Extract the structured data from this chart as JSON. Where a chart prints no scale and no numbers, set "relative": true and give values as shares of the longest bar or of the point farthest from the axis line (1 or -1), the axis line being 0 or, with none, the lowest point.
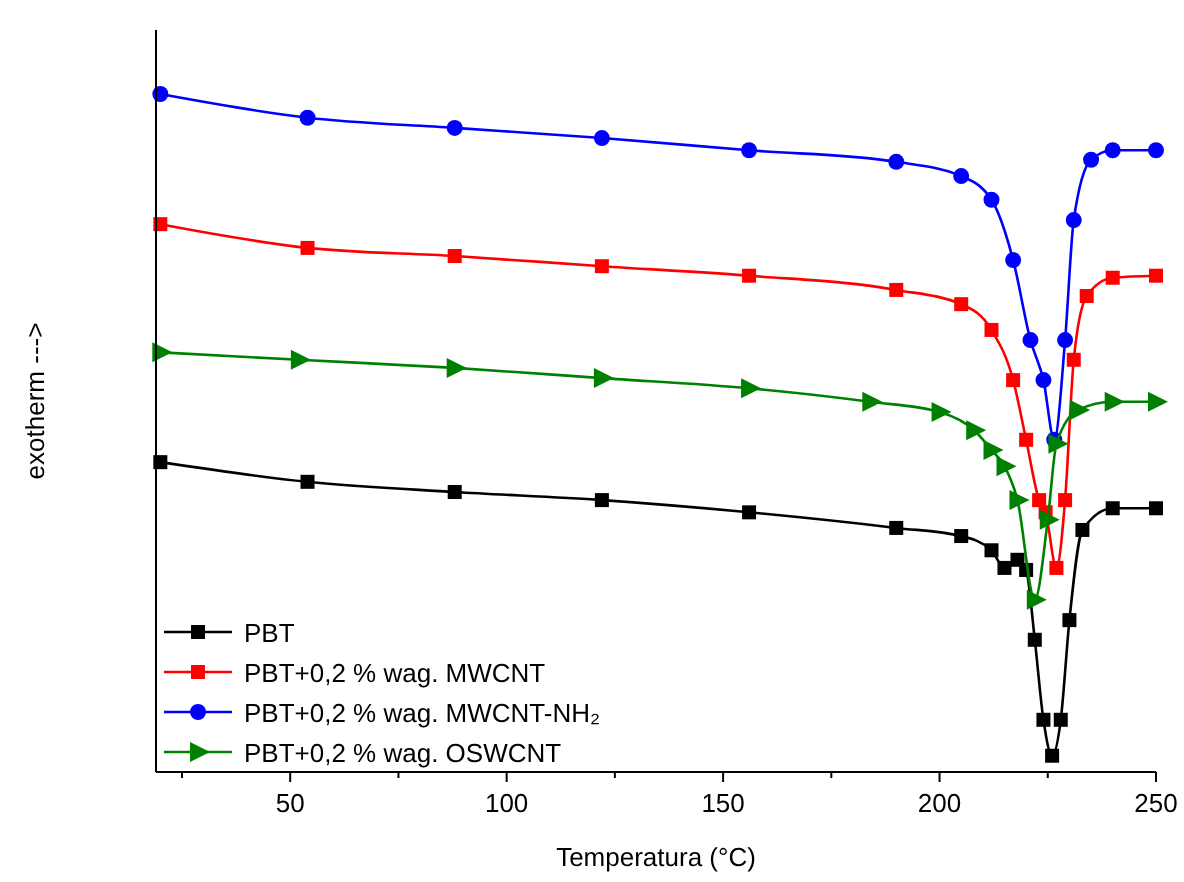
{
  "chart_data": {
    "type": "line",
    "relative": true,
    "xlabel": "Temperatura (°C)",
    "ylabel": "exotherm --->",
    "xlim": [
      19,
      250
    ],
    "xticks": [
      {
        "value": 25,
        "label": null
      },
      50,
      {
        "value": 75,
        "label": null
      },
      100,
      {
        "value": 125,
        "label": null
      },
      150,
      {
        "value": 175,
        "label": null
      },
      200,
      {
        "value": 225,
        "label": null
      },
      250
    ],
    "grid": false,
    "legend": "bottom left",
    "line_style": "solid",
    "series": [
      {
        "name": "PBT",
        "color": "#000000",
        "marker": "square",
        "x": [
          20,
          54,
          88,
          122,
          156,
          190,
          205,
          212,
          215,
          218,
          220,
          222,
          224,
          226,
          228,
          230,
          233,
          240,
          250
        ],
        "values": [
          0.457,
          0.428,
          0.413,
          0.401,
          0.383,
          0.36,
          0.348,
          0.327,
          0.301,
          0.313,
          0.298,
          0.195,
          0.077,
          0.024,
          0.077,
          0.224,
          0.357,
          0.389,
          0.389
        ]
      },
      {
        "name": "PBT+0,2 % wag. MWCNT",
        "color": "#ff0000",
        "marker": "square",
        "x": [
          20,
          54,
          88,
          122,
          156,
          190,
          205,
          212,
          217,
          220,
          223,
          224.5,
          227,
          229,
          231,
          234,
          240,
          250
        ],
        "values": [
          0.808,
          0.773,
          0.761,
          0.746,
          0.732,
          0.711,
          0.69,
          0.652,
          0.578,
          0.49,
          0.401,
          0.383,
          0.301,
          0.401,
          0.608,
          0.702,
          0.729,
          0.732
        ]
      },
      {
        "name": "PBT+0,2 % wag. MWCNT-NH₂",
        "color": "#0000ff",
        "marker": "circle",
        "x": [
          20,
          54,
          88,
          122,
          156,
          190,
          205,
          212,
          217,
          221,
          224,
          226.5,
          229,
          231,
          235,
          240,
          250
        ],
        "values": [
          1.0,
          0.965,
          0.95,
          0.935,
          0.917,
          0.9,
          0.879,
          0.844,
          0.755,
          0.637,
          0.578,
          0.49,
          0.637,
          0.814,
          0.903,
          0.917,
          0.917
        ]
      },
      {
        "name": "PBT+0,2 % wag. OSWCNT",
        "color": "#008000",
        "marker": "triangle",
        "x": [
          20,
          52,
          88,
          122,
          156,
          184,
          200,
          208,
          212,
          215,
          218,
          222,
          225,
          227,
          232,
          240,
          250
        ],
        "values": [
          0.619,
          0.608,
          0.596,
          0.581,
          0.566,
          0.546,
          0.531,
          0.504,
          0.475,
          0.451,
          0.401,
          0.254,
          0.372,
          0.484,
          0.534,
          0.546,
          0.546
        ]
      }
    ]
  }
}
